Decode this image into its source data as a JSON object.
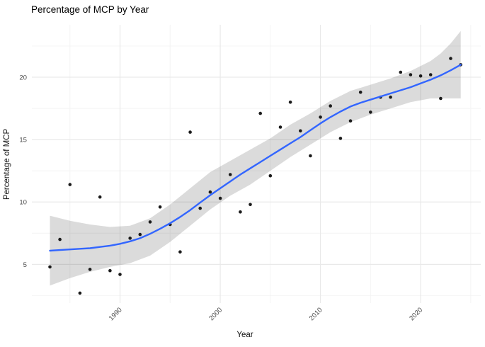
{
  "chart_data": {
    "type": "scatter",
    "title": "Percentage of MCP by Year",
    "xlabel": "Year",
    "ylabel": "Percentage of MCP",
    "legend": "none",
    "grid": true,
    "xlim": [
      1981.2,
      2026.0
    ],
    "ylim": [
      1.9,
      24.2
    ],
    "x_ticks": [
      1990,
      2000,
      2010,
      2020
    ],
    "x_minor_ticks": [
      1985,
      1995,
      2005,
      2015,
      2025
    ],
    "y_ticks": [
      5,
      10,
      15,
      20
    ],
    "y_minor_ticks": [
      2.5,
      7.5,
      12.5,
      17.5,
      22.5
    ],
    "points": [
      [
        1983,
        4.8
      ],
      [
        1984,
        7.0
      ],
      [
        1985,
        11.4
      ],
      [
        1986,
        2.7
      ],
      [
        1987,
        4.6
      ],
      [
        1988,
        10.4
      ],
      [
        1989,
        4.5
      ],
      [
        1990,
        4.2
      ],
      [
        1991,
        7.1
      ],
      [
        1992,
        7.4
      ],
      [
        1993,
        8.4
      ],
      [
        1994,
        9.6
      ],
      [
        1995,
        8.2
      ],
      [
        1996,
        6.0
      ],
      [
        1997,
        15.6
      ],
      [
        1998,
        9.5
      ],
      [
        1999,
        10.8
      ],
      [
        2000,
        10.3
      ],
      [
        2001,
        12.2
      ],
      [
        2002,
        9.2
      ],
      [
        2003,
        9.8
      ],
      [
        2004,
        17.1
      ],
      [
        2005,
        12.1
      ],
      [
        2006,
        16.0
      ],
      [
        2007,
        18.0
      ],
      [
        2008,
        15.7
      ],
      [
        2009,
        13.7
      ],
      [
        2010,
        16.8
      ],
      [
        2011,
        17.7
      ],
      [
        2012,
        15.1
      ],
      [
        2013,
        16.5
      ],
      [
        2014,
        18.8
      ],
      [
        2015,
        17.2
      ],
      [
        2016,
        18.4
      ],
      [
        2017,
        18.4
      ],
      [
        2018,
        20.4
      ],
      [
        2019,
        20.2
      ],
      [
        2020,
        20.1
      ],
      [
        2021,
        20.2
      ],
      [
        2022,
        18.3
      ],
      [
        2023,
        21.5
      ],
      [
        2024,
        21.0
      ]
    ],
    "smooth_line": [
      [
        1983,
        6.1
      ],
      [
        1984,
        6.15
      ],
      [
        1985,
        6.2
      ],
      [
        1986,
        6.25
      ],
      [
        1987,
        6.3
      ],
      [
        1988,
        6.4
      ],
      [
        1989,
        6.5
      ],
      [
        1990,
        6.65
      ],
      [
        1991,
        6.85
      ],
      [
        1992,
        7.1
      ],
      [
        1993,
        7.45
      ],
      [
        1994,
        7.85
      ],
      [
        1995,
        8.3
      ],
      [
        1996,
        8.8
      ],
      [
        1997,
        9.35
      ],
      [
        1998,
        9.95
      ],
      [
        1999,
        10.55
      ],
      [
        2000,
        11.1
      ],
      [
        2001,
        11.65
      ],
      [
        2002,
        12.2
      ],
      [
        2003,
        12.7
      ],
      [
        2004,
        13.2
      ],
      [
        2005,
        13.7
      ],
      [
        2006,
        14.2
      ],
      [
        2007,
        14.7
      ],
      [
        2008,
        15.2
      ],
      [
        2009,
        15.75
      ],
      [
        2010,
        16.3
      ],
      [
        2011,
        16.8
      ],
      [
        2012,
        17.25
      ],
      [
        2013,
        17.65
      ],
      [
        2014,
        17.95
      ],
      [
        2015,
        18.2
      ],
      [
        2016,
        18.45
      ],
      [
        2017,
        18.7
      ],
      [
        2018,
        18.95
      ],
      [
        2019,
        19.2
      ],
      [
        2020,
        19.5
      ],
      [
        2021,
        19.8
      ],
      [
        2022,
        20.15
      ],
      [
        2023,
        20.55
      ],
      [
        2024,
        21.0
      ]
    ],
    "confidence_band": [
      [
        1983,
        3.3,
        8.9
      ],
      [
        1985,
        3.9,
        8.5
      ],
      [
        1987,
        4.4,
        8.2
      ],
      [
        1989,
        4.8,
        8.0
      ],
      [
        1991,
        5.1,
        8.1
      ],
      [
        1993,
        5.7,
        8.7
      ],
      [
        1995,
        6.8,
        9.8
      ],
      [
        1997,
        8.1,
        11.1
      ],
      [
        1999,
        9.4,
        12.4
      ],
      [
        2001,
        10.5,
        13.3
      ],
      [
        2003,
        11.4,
        14.2
      ],
      [
        2005,
        12.5,
        15.1
      ],
      [
        2007,
        13.6,
        16.2
      ],
      [
        2009,
        14.6,
        17.1
      ],
      [
        2011,
        15.6,
        18.1
      ],
      [
        2013,
        16.4,
        18.9
      ],
      [
        2015,
        17.0,
        19.4
      ],
      [
        2017,
        17.5,
        19.9
      ],
      [
        2019,
        18.0,
        20.5
      ],
      [
        2021,
        18.3,
        21.3
      ],
      [
        2022,
        18.3,
        21.9
      ],
      [
        2023,
        18.3,
        22.7
      ],
      [
        2024,
        18.3,
        23.7
      ]
    ],
    "colors": {
      "point": "#1b1b1b",
      "line": "#3366FF",
      "band": "#000000",
      "band_opacity": 0.14,
      "grid_major": "#e9e9e9",
      "grid_minor": "#f4f4f4",
      "tick_text": "#4d4d4d",
      "title_text": "#000000"
    }
  }
}
